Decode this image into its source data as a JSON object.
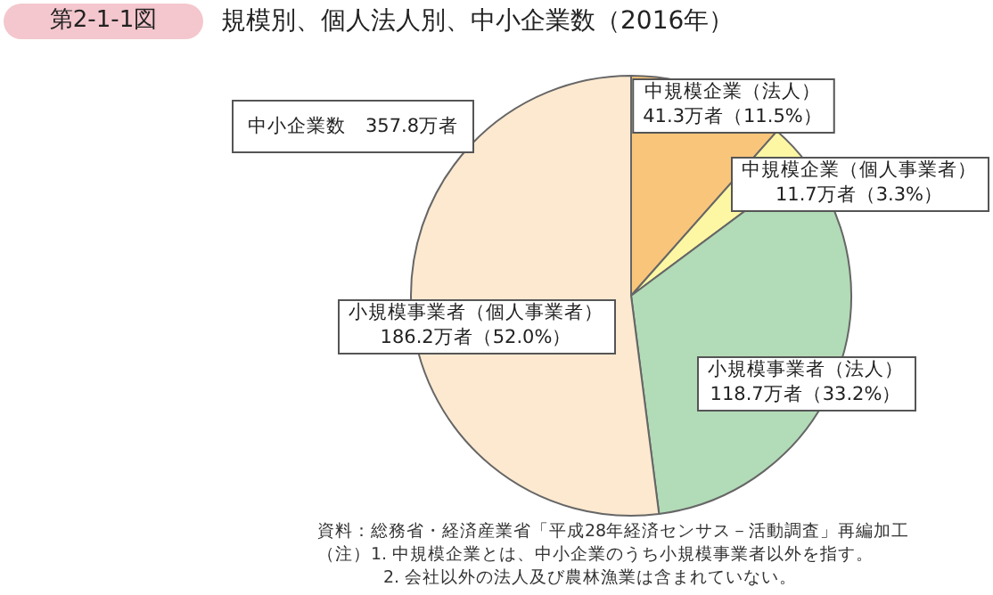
{
  "chart_data": {
    "type": "pie",
    "title": "規模別、個人法人別、中小企業数（2016年）",
    "categories": [
      "中規模企業（法人）",
      "中規模企業（個人事業者）",
      "小規模事業者（法人）",
      "小規模事業者（個人事業者）"
    ],
    "values": [
      41.3,
      11.7,
      118.7,
      186.2
    ],
    "value_labels": [
      "41.3万者（11.5%）",
      "11.7万者（3.3%）",
      "118.7万者（33.2%）",
      "186.2万者（52.0%）"
    ],
    "colors": [
      "#f8c57a",
      "#fdf7a4",
      "#b2dbb7",
      "#fde9d0"
    ],
    "annotations": [
      "第2-1-1図",
      "中小企業数　357.8万者",
      "資料：総務省・経済産業省「平成28年経済センサス－活動調査」再編加工",
      "（注）1. 中規模企業とは、中小企業のうち小規模事業者以外を指す。",
      "2. 会社以外の法人及び農林漁業は含まれていない。"
    ]
  }
}
